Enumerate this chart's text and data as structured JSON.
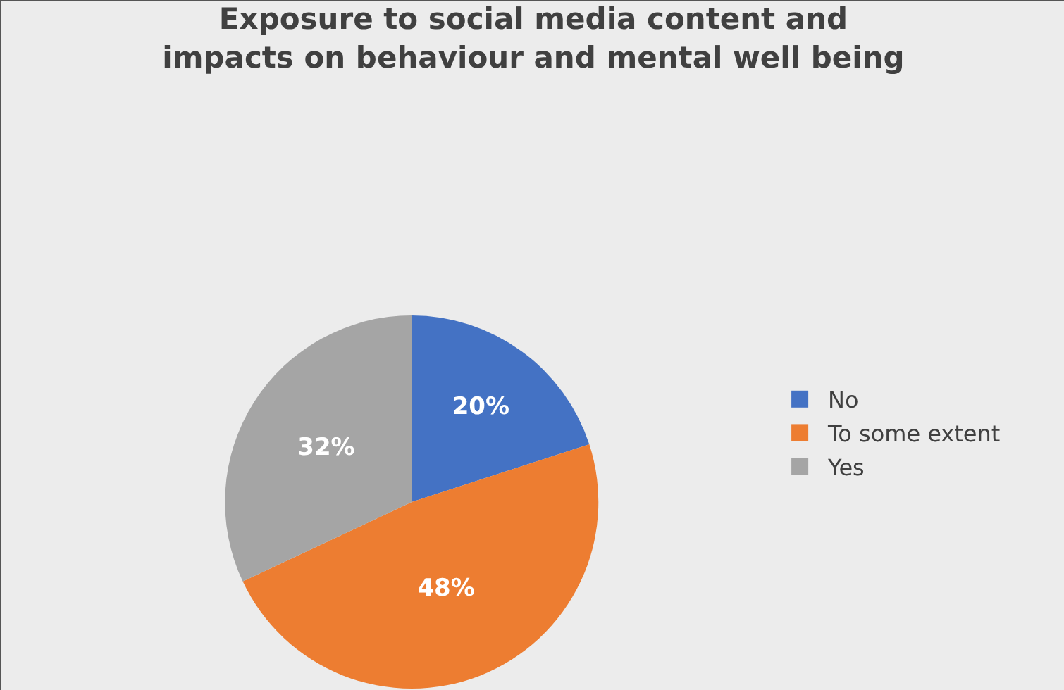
{
  "chart_data": {
    "type": "pie",
    "title": "Exposure to social media content and\nimpacts on behaviour and mental well being",
    "categories": [
      "No",
      "To some extent",
      "Yes"
    ],
    "values": [
      20,
      48,
      32
    ],
    "colors": [
      "#4472c4",
      "#ed7d31",
      "#a5a5a5"
    ],
    "value_labels": [
      "20%",
      "48%",
      "32%"
    ],
    "legend": "right"
  }
}
